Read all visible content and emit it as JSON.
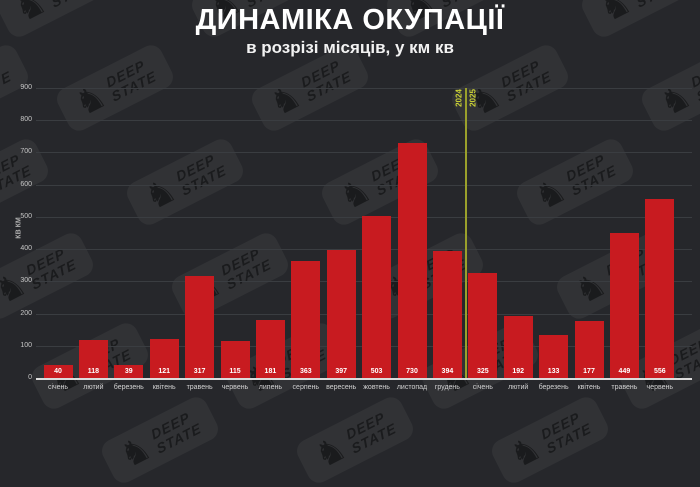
{
  "header": {
    "title": "ДИНАМІКА ОКУПАЦІЇ",
    "subtitle": "в розрізі місяців, у км кв"
  },
  "brand": {
    "watermark_line1": "DEEP",
    "watermark_line2": "STATE",
    "knight_icon": "♞"
  },
  "chart_data": {
    "type": "bar",
    "categories": [
      "січень",
      "лютий",
      "березень",
      "квітень",
      "травень",
      "червень",
      "липень",
      "серпень",
      "вересень",
      "жовтень",
      "листопад",
      "грудень",
      "січень",
      "лютий",
      "березень",
      "квітень",
      "травень",
      "червень"
    ],
    "values": [
      40,
      118,
      39,
      121,
      317,
      115,
      181,
      363,
      397,
      503,
      730,
      394,
      325,
      192,
      133,
      177,
      449,
      556
    ],
    "title": "ДИНАМІКА ОКУПАЦІЇ",
    "subtitle": "в розрізі місяців, у км кв",
    "xlabel": "",
    "ylabel": "КВ КМ",
    "ylim": [
      0,
      900
    ],
    "yticks": [
      0,
      100,
      200,
      300,
      400,
      500,
      600,
      700,
      800,
      900
    ],
    "grid": true,
    "legend": "none",
    "bar_color": "#c81b20",
    "background_color": "#26272b",
    "year_divider": {
      "after_index": 11,
      "left_label": "2024",
      "right_label": "2025",
      "line_color": "#9aa02b",
      "label_color": "#cdd435"
    }
  }
}
